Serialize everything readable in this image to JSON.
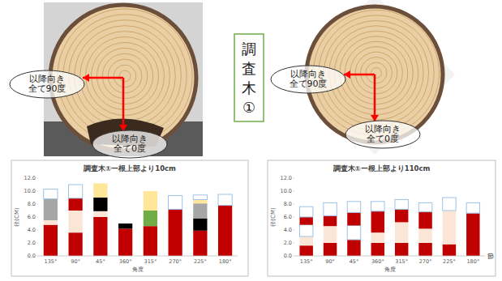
{
  "panel_title": "調査木①",
  "photos": [
    {
      "labels": [
        [
          "以降向き",
          "全て90度"
        ],
        [
          "以降向き",
          "全て0度"
        ]
      ]
    },
    {
      "labels": [
        [
          "以降向き",
          "全て90度"
        ],
        [
          "以降向き",
          "全て0度"
        ]
      ]
    }
  ],
  "chart_data": [
    {
      "type": "bar",
      "stacked": true,
      "grid": false,
      "title": "調査木①ー根上部より10cm",
      "y_label": "径(CM)",
      "x_label": "角度",
      "categories": [
        "135°",
        "90°",
        "45°",
        "360°",
        "315°",
        "270°",
        "225°",
        "180°"
      ],
      "ylim": [
        0,
        12
      ],
      "yticks": [
        {
          "value": 0,
          "label": "0.0"
        },
        {
          "value": 2,
          "label": "2.0"
        },
        {
          "value": 4,
          "label": "4.0"
        },
        {
          "value": 6,
          "label": "6.0"
        },
        {
          "value": 8,
          "label": "8.0"
        },
        {
          "value": 10,
          "label": "10.0"
        },
        {
          "value": 12,
          "label": "12.0"
        }
      ],
      "series": [
        {
          "values": [
            4.8,
            3.6,
            6.0,
            4.2,
            4.6,
            7.2,
            3.9,
            7.8
          ],
          "colors": [
            "#c00000",
            "#c00000",
            "#c00000",
            "#c00000",
            "#c00000",
            "#c00000",
            "#c00000",
            "#c00000"
          ]
        },
        {
          "values": [
            0.7,
            3.4,
            0.9,
            0.8,
            2.4,
            2.1,
            1.9,
            1.7
          ],
          "colors": [
            "#fbe5d6",
            "#fbe5d6",
            "#fbe5d6",
            "#000000",
            "#70ad47",
            "#ffffff",
            "#000000",
            "#ffffff"
          ]
        },
        {
          "values": [
            3.3,
            1.9,
            2.1,
            null,
            3.0,
            null,
            2.3,
            null
          ],
          "colors": [
            "#a6a6a6",
            "#c00000",
            "#000000",
            null,
            "#ffe699",
            null,
            "#a6a6a6",
            null
          ]
        },
        {
          "values": [
            1.5,
            2.1,
            2.2,
            null,
            null,
            null,
            0.6,
            null
          ],
          "colors": [
            "#ffffff",
            "#ffffff",
            "#ffe699",
            null,
            null,
            null,
            "#ffe699",
            null
          ]
        },
        {
          "values": [
            null,
            null,
            null,
            null,
            null,
            null,
            0.7,
            null
          ],
          "colors": [
            null,
            null,
            null,
            null,
            null,
            null,
            "#ffffff",
            null
          ]
        }
      ]
    },
    {
      "type": "bar",
      "stacked": true,
      "grid": false,
      "title": "調査木①ー根上部より110cm",
      "y_label": "径(CM)",
      "x_label": "角度",
      "annotations": [
        "節"
      ],
      "categories": [
        "135°",
        "90°",
        "45°",
        "360°",
        "315°",
        "270°",
        "225°",
        "180°"
      ],
      "ylim": [
        0,
        12
      ],
      "yticks": [
        {
          "value": 0,
          "label": "0.0"
        },
        {
          "value": 2,
          "label": "2.0"
        },
        {
          "value": 4,
          "label": "4.0"
        },
        {
          "value": 6,
          "label": "6.0"
        },
        {
          "value": 8,
          "label": "8.0"
        },
        {
          "value": 10,
          "label": "10.0"
        },
        {
          "value": 12,
          "label": "12.0"
        }
      ],
      "series": [
        {
          "values": [
            1.6,
            2.0,
            2.5,
            2.0,
            2.0,
            2.0,
            1.8,
            6.6
          ],
          "colors": [
            "#c00000",
            "#c00000",
            "#c00000",
            "#c00000",
            "#c00000",
            "#c00000",
            "#c00000",
            "#c00000"
          ]
        },
        {
          "values": [
            1.4,
            2.6,
            2.2,
            1.6,
            3.2,
            2.2,
            5.2,
            1.6
          ],
          "colors": [
            "#fbe5d6",
            "#fbe5d6",
            "#ffffff",
            "#fbe5d6",
            "#fbe5d6",
            "#fbe5d6",
            "#fbe5d6",
            "#ffffff"
          ]
        },
        {
          "values": [
            1.8,
            1.6,
            2.0,
            3.3,
            2.0,
            2.6,
            2.0,
            null
          ],
          "colors": [
            "#ffffff",
            "#c00000",
            "#c00000",
            "#c00000",
            "#c00000",
            "#c00000",
            "#ffffff",
            null
          ]
        },
        {
          "values": [
            1.2,
            2.0,
            1.7,
            1.5,
            1.5,
            1.4,
            null,
            null
          ],
          "colors": [
            "#c00000",
            "#ffffff",
            "#ffffff",
            "#ffffff",
            "#ffffff",
            "#ffffff",
            null,
            null
          ]
        },
        {
          "values": [
            1.6,
            null,
            null,
            null,
            null,
            null,
            null,
            null
          ],
          "colors": [
            "#ffffff",
            null,
            null,
            null,
            null,
            null,
            null,
            null
          ]
        }
      ]
    }
  ]
}
